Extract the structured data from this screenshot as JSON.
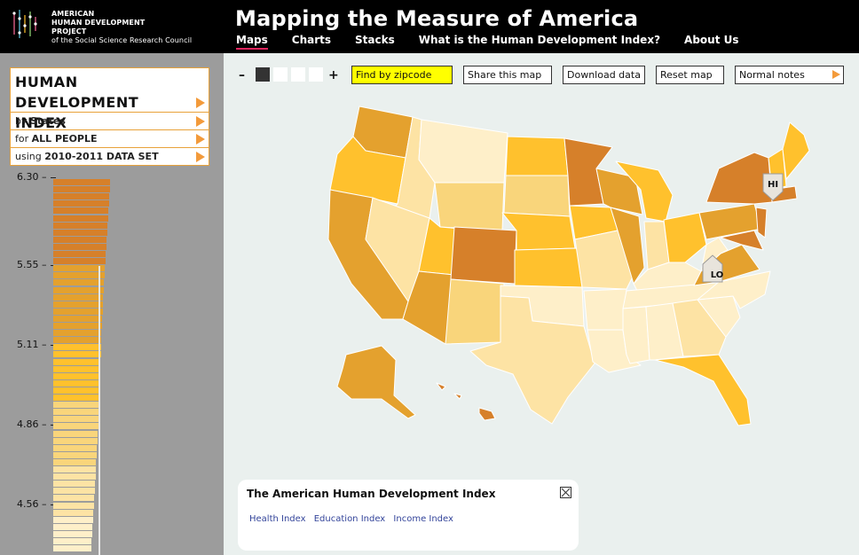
{
  "header": {
    "logo_line1": "AMERICAN",
    "logo_line2": "HUMAN DEVELOPMENT",
    "logo_line3": "PROJECT",
    "logo_line4": "of the Social Science Research Council",
    "title": "Mapping the Measure of America",
    "nav": [
      "Maps",
      "Charts",
      "Stacks",
      "What is the Human Development Index?",
      "About Us"
    ]
  },
  "sidebar": {
    "index_title": "HUMAN DEVELOPMENT INDEX",
    "by_prefix": "by",
    "by_value": "States",
    "for_prefix": "for",
    "for_value": "ALL PEOPLE",
    "using_prefix": "using",
    "using_value": "2010-2011 DATA SET",
    "scale_ticks": [
      "6.30 –",
      "5.55 –",
      "5.11 –",
      "4.86 –",
      "4.56 –"
    ]
  },
  "toolbar": {
    "zoom_out": "–",
    "zoom_in": "+",
    "find": "Find by zipcode",
    "share": "Share this map",
    "download": "Download data",
    "reset": "Reset map",
    "notes": "Normal notes"
  },
  "map": {
    "hi_label": "HI",
    "lo_label": "LO",
    "colors": {
      "darkest": "#d6802a",
      "dark": "#e4a12e",
      "mid": "#ffc12d",
      "light": "#f9d57b",
      "lighter": "#fde3a4",
      "lightest": "#feefc9"
    }
  },
  "info": {
    "title": "The American Human Development Index",
    "links": [
      "Health Index",
      "Education Index",
      "Income Index"
    ]
  }
}
